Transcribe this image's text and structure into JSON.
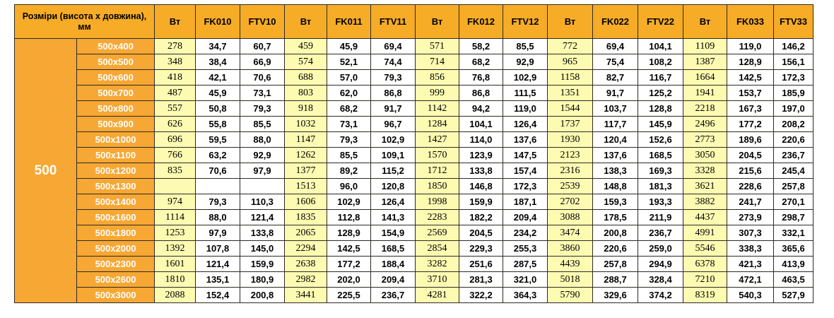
{
  "colors": {
    "header_bg": "#f6ac26",
    "size_column_bg": "#f7a733",
    "watt_column_bg": "#fdfbb2",
    "value_bg": "#ffffff",
    "border": "#2f2a24"
  },
  "table": {
    "corner_label": "Розміри (висота х довжина), мм",
    "group_label": "500",
    "headers": [
      "Вт",
      "FK010",
      "FTV10",
      "Вт",
      "FK011",
      "FTV11",
      "Вт",
      "FK012",
      "FTV12",
      "Вт",
      "FK022",
      "FTV22",
      "Вт",
      "FK033",
      "FTV33"
    ],
    "rows": [
      {
        "size": "500x400",
        "cells": [
          "278",
          "34,7",
          "60,7",
          "459",
          "45,9",
          "69,4",
          "571",
          "58,2",
          "85,5",
          "772",
          "69,4",
          "104,1",
          "1109",
          "119,0",
          "146,2"
        ]
      },
      {
        "size": "500x500",
        "cells": [
          "348",
          "38,4",
          "66,9",
          "574",
          "52,1",
          "74,4",
          "714",
          "68,2",
          "92,9",
          "965",
          "75,4",
          "108,2",
          "1387",
          "128,9",
          "156,1"
        ]
      },
      {
        "size": "500x600",
        "cells": [
          "418",
          "42,1",
          "70,6",
          "688",
          "57,0",
          "79,3",
          "856",
          "76,8",
          "102,9",
          "1158",
          "82,7",
          "116,7",
          "1664",
          "142,5",
          "172,3"
        ]
      },
      {
        "size": "500x700",
        "cells": [
          "487",
          "45,9",
          "73,1",
          "803",
          "62,0",
          "86,8",
          "999",
          "86,8",
          "111,5",
          "1351",
          "91,7",
          "125,2",
          "1941",
          "153,7",
          "185,9"
        ]
      },
      {
        "size": "500x800",
        "cells": [
          "557",
          "50,8",
          "79,3",
          "918",
          "68,2",
          "91,7",
          "1142",
          "94,2",
          "119,0",
          "1544",
          "103,7",
          "128,8",
          "2218",
          "167,3",
          "197,0"
        ]
      },
      {
        "size": "500x900",
        "cells": [
          "626",
          "55,8",
          "85,5",
          "1032",
          "73,1",
          "96,7",
          "1284",
          "104,1",
          "126,4",
          "1737",
          "117,7",
          "145,9",
          "2496",
          "177,2",
          "208,2"
        ]
      },
      {
        "size": "500x1000",
        "cells": [
          "696",
          "59,5",
          "88,0",
          "1147",
          "79,3",
          "102,9",
          "1427",
          "114,0",
          "137,6",
          "1930",
          "120,4",
          "152,6",
          "2773",
          "189,6",
          "220,6"
        ]
      },
      {
        "size": "500x1100",
        "cells": [
          "766",
          "63,2",
          "92,9",
          "1262",
          "85,5",
          "109,1",
          "1570",
          "123,9",
          "147,5",
          "2123",
          "137,6",
          "168,5",
          "3050",
          "204,5",
          "236,7"
        ]
      },
      {
        "size": "500x1200",
        "cells": [
          "835",
          "70,6",
          "97,9",
          "1377",
          "89,2",
          "115,2",
          "1712",
          "133,8",
          "157,4",
          "2316",
          "138,3",
          "169,3",
          "3328",
          "215,6",
          "245,4"
        ]
      },
      {
        "size": "500x1300",
        "cells": [
          "",
          "",
          "",
          "1513",
          "96,0",
          "120,8",
          "1850",
          "146,8",
          "172,3",
          "2539",
          "148,8",
          "181,3",
          "3621",
          "228,6",
          "257,8"
        ]
      },
      {
        "size": "500x1400",
        "cells": [
          "974",
          "79,3",
          "110,3",
          "1606",
          "102,9",
          "126,4",
          "1998",
          "159,9",
          "187,1",
          "2702",
          "159,3",
          "193,3",
          "3882",
          "241,7",
          "270,1"
        ]
      },
      {
        "size": "500x1600",
        "cells": [
          "1114",
          "88,0",
          "121,4",
          "1835",
          "112,8",
          "141,3",
          "2283",
          "182,2",
          "209,4",
          "3088",
          "178,5",
          "211,9",
          "4437",
          "273,9",
          "298,7"
        ]
      },
      {
        "size": "500x1800",
        "cells": [
          "1253",
          "97,9",
          "133,8",
          "2065",
          "128,9",
          "154,9",
          "2569",
          "204,5",
          "234,2",
          "3474",
          "200,8",
          "236,7",
          "4991",
          "307,3",
          "332,1"
        ]
      },
      {
        "size": "500x2000",
        "cells": [
          "1392",
          "107,8",
          "145,0",
          "2294",
          "142,5",
          "168,5",
          "2854",
          "229,3",
          "255,3",
          "3860",
          "220,6",
          "259,0",
          "5546",
          "338,3",
          "365,6"
        ]
      },
      {
        "size": "500x2300",
        "cells": [
          "1601",
          "121,4",
          "159,9",
          "2638",
          "177,2",
          "188,4",
          "3282",
          "251,6",
          "287,5",
          "4439",
          "257,8",
          "294,9",
          "6378",
          "421,3",
          "413,9"
        ]
      },
      {
        "size": "500x2600",
        "cells": [
          "1810",
          "135,1",
          "180,9",
          "2982",
          "202,0",
          "209,4",
          "3710",
          "281,3",
          "321,0",
          "5018",
          "288,7",
          "328,4",
          "7210",
          "472,1",
          "463,5"
        ]
      },
      {
        "size": "500x3000",
        "cells": [
          "2088",
          "152,4",
          "200,8",
          "3441",
          "225,5",
          "236,7",
          "4281",
          "322,2",
          "364,3",
          "5790",
          "329,6",
          "374,2",
          "8319",
          "540,3",
          "527,9"
        ]
      }
    ]
  }
}
